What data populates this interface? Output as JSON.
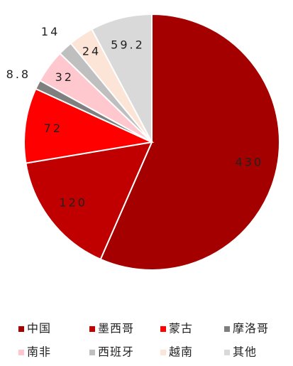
{
  "chart_data": {
    "type": "pie",
    "categories": [
      "中国",
      "墨西哥",
      "蒙古",
      "摩洛哥",
      "南非",
      "西班牙",
      "越南",
      "其他"
    ],
    "values": [
      430,
      120,
      72,
      8.8,
      32,
      14,
      24,
      59.2
    ],
    "colors": [
      "#a50000",
      "#c00000",
      "#ff0000",
      "#7f7f7f",
      "#ffc7ce",
      "#bfbfbf",
      "#fce4d6",
      "#d9d9d9"
    ],
    "legend": "bottom"
  }
}
